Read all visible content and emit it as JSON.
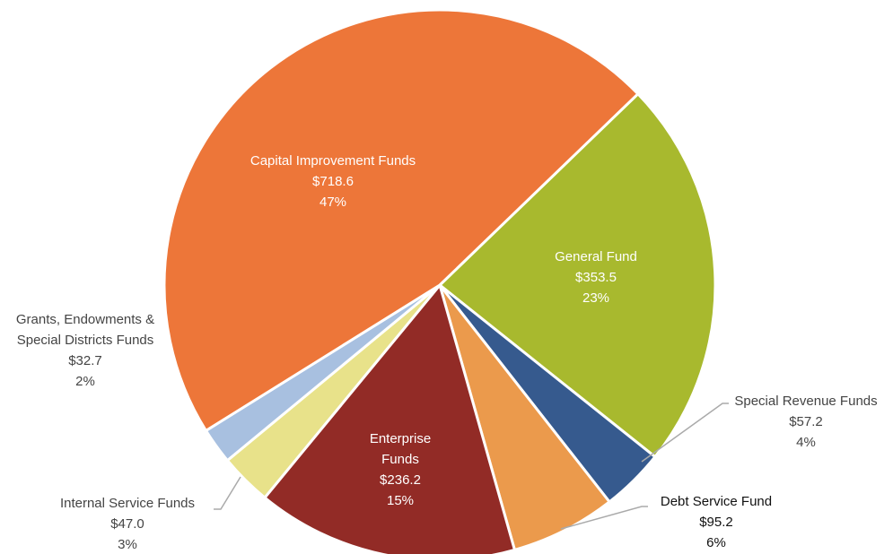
{
  "chart_data": {
    "type": "pie",
    "categories": [
      "General Fund",
      "Special Revenue Funds",
      "Debt Service Fund",
      "Enterprise Funds",
      "Internal Service Funds",
      "Grants, Endowments & Special Districts Funds",
      "Capital Improvement Funds"
    ],
    "values": [
      353.5,
      57.2,
      95.2,
      236.2,
      47.0,
      32.7,
      718.6
    ],
    "value_labels": [
      "$353.5",
      "$57.2",
      "$95.2",
      "$236.2",
      "$47.0",
      "$32.7",
      "$718.6"
    ],
    "percents": [
      23,
      4,
      6,
      15,
      3,
      2,
      47
    ],
    "percent_labels": [
      "23%",
      "4%",
      "6%",
      "15%",
      "3%",
      "2%",
      "47%"
    ],
    "colors": [
      "#a8b92e",
      "#365a8e",
      "#eb9a4c",
      "#922b26",
      "#e8e28a",
      "#a8c0e0",
      "#ed7639"
    ]
  }
}
